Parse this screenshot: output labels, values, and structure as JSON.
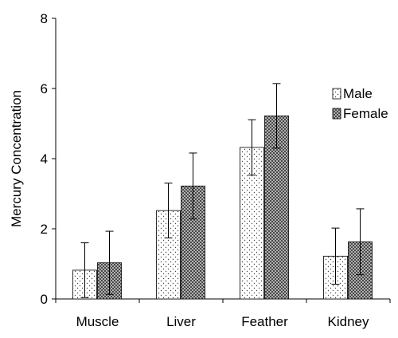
{
  "chart_data": {
    "type": "bar",
    "title": "",
    "xlabel": "",
    "ylabel": "Mercury Concentration",
    "categories": [
      "Muscle",
      "Liver",
      "Feather",
      "Kidney"
    ],
    "ylim": [
      0,
      8
    ],
    "yticks": [
      0,
      2,
      4,
      6,
      8
    ],
    "grid": false,
    "legend": "top-right",
    "series": [
      {
        "name": "Male",
        "pattern": "dots",
        "values": [
          0.82,
          2.52,
          4.32,
          1.22
        ],
        "error": [
          0.78,
          0.78,
          0.79,
          0.8
        ]
      },
      {
        "name": "Female",
        "pattern": "crosshatch",
        "values": [
          1.03,
          3.22,
          5.22,
          1.63
        ],
        "error": [
          0.9,
          0.94,
          0.92,
          0.94
        ]
      }
    ]
  }
}
